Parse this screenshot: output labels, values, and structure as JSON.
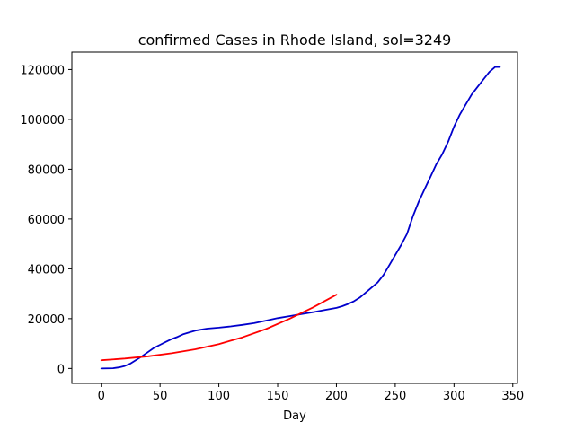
{
  "chart_data": {
    "type": "line",
    "title": "confirmed Cases in Rhode Island, sol=3249",
    "xlabel": "Day",
    "ylabel": "",
    "xlim": [
      -25,
      354
    ],
    "ylim": [
      -6000,
      127000
    ],
    "x_ticks": [
      0,
      50,
      100,
      150,
      200,
      250,
      300,
      350
    ],
    "y_ticks": [
      0,
      20000,
      40000,
      60000,
      80000,
      100000,
      120000
    ],
    "grid": false,
    "legend": "none",
    "series": [
      {
        "color": "#0000cc",
        "x": [
          0,
          10,
          15,
          20,
          25,
          30,
          35,
          40,
          45,
          50,
          55,
          60,
          65,
          70,
          75,
          80,
          90,
          100,
          110,
          120,
          130,
          140,
          150,
          160,
          170,
          180,
          190,
          200,
          205,
          210,
          215,
          220,
          225,
          230,
          235,
          240,
          245,
          250,
          255,
          260,
          265,
          270,
          275,
          280,
          285,
          290,
          295,
          300,
          305,
          310,
          315,
          320,
          325,
          330,
          335,
          339
        ],
        "y": [
          0,
          100,
          400,
          1000,
          2000,
          3500,
          5000,
          6700,
          8300,
          9500,
          10700,
          11800,
          12700,
          13800,
          14500,
          15200,
          16000,
          16400,
          16900,
          17500,
          18200,
          19200,
          20200,
          21000,
          21800,
          22600,
          23500,
          24300,
          25000,
          25900,
          27000,
          28500,
          30500,
          32500,
          34500,
          37500,
          41500,
          45500,
          49500,
          54000,
          61000,
          67000,
          72000,
          77000,
          82000,
          86000,
          91000,
          97000,
          102000,
          106000,
          110000,
          113000,
          116000,
          119000,
          121000,
          121000
        ]
      },
      {
        "color": "#ff0000",
        "x": [
          0,
          20,
          40,
          60,
          80,
          100,
          120,
          140,
          160,
          180,
          200
        ],
        "y": [
          3300,
          4000,
          4900,
          6100,
          7700,
          9800,
          12500,
          15800,
          19900,
          24500,
          29600
        ]
      }
    ]
  }
}
